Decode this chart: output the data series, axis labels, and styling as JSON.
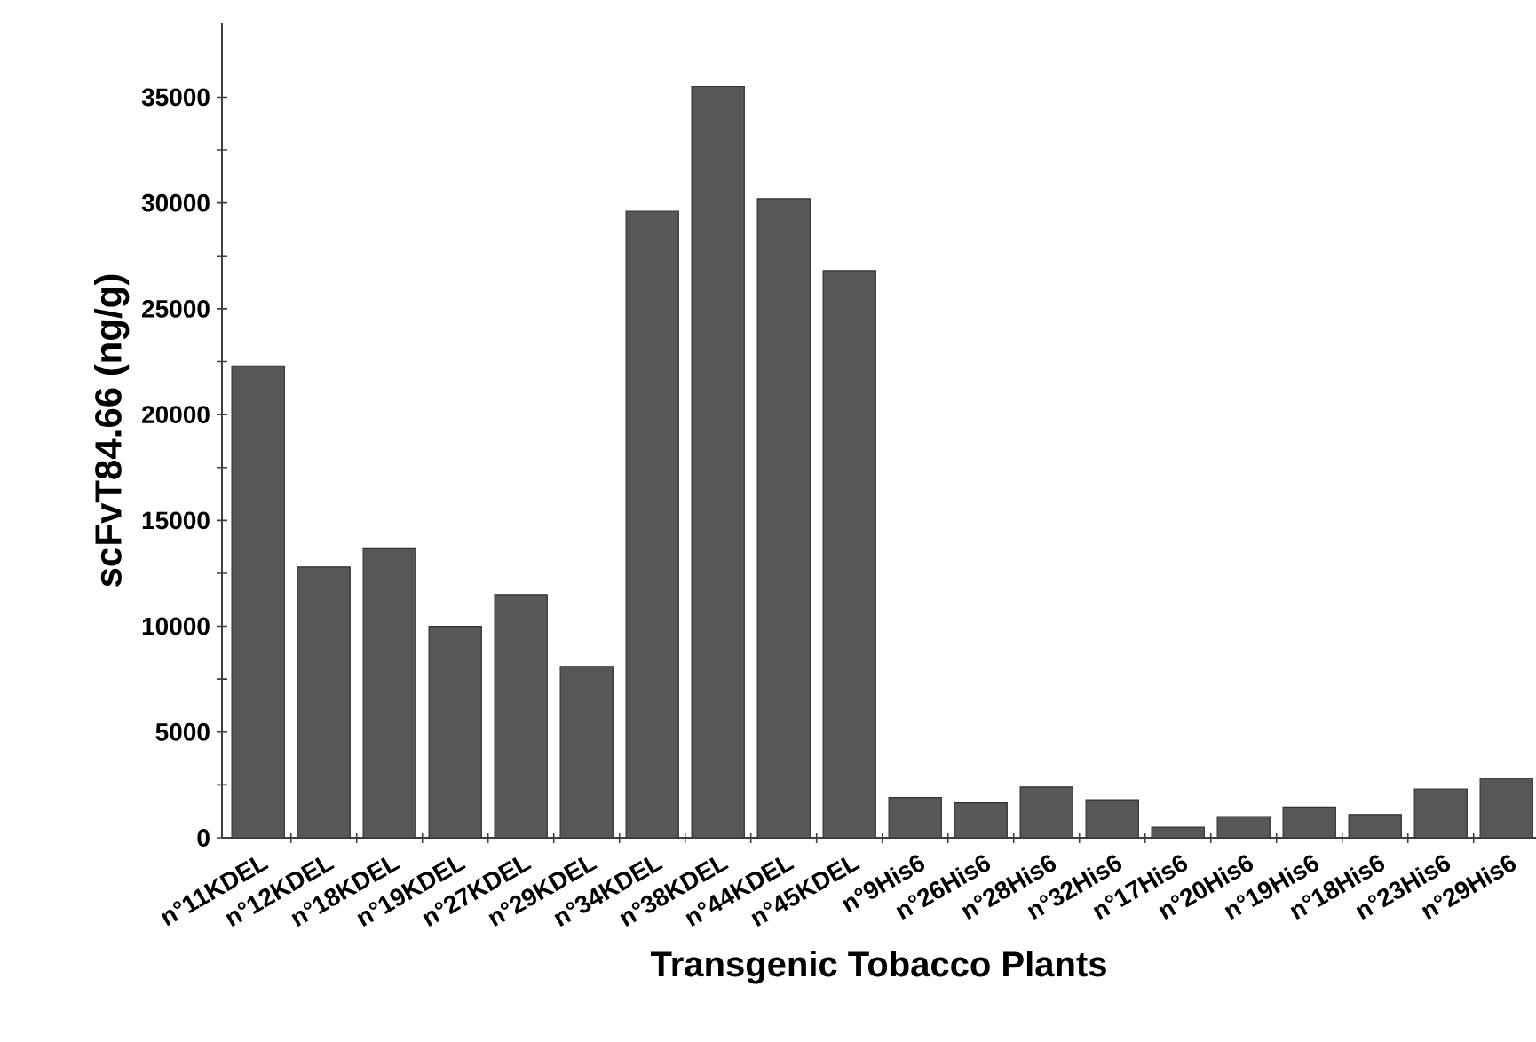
{
  "chart_data": {
    "type": "bar",
    "xlabel": "Transgenic Tobacco Plants",
    "ylabel": "scFvT84.66 (ng/g)",
    "categories": [
      "n°11KDEL",
      "n°12KDEL",
      "n°18KDEL",
      "n°19KDEL",
      "n°27KDEL",
      "n°29KDEL",
      "n°34KDEL",
      "n°38KDEL",
      "n°44KDEL",
      "n°45KDEL",
      "n°9His6",
      "n°26His6",
      "n°28His6",
      "n°32His6",
      "n°17His6",
      "n°20His6",
      "n°19His6",
      "n°18His6",
      "n°23His6",
      "n°29His6"
    ],
    "values": [
      22300,
      12800,
      13700,
      10000,
      11500,
      8100,
      29600,
      35500,
      30200,
      26800,
      1900,
      1650,
      2400,
      1800,
      500,
      1000,
      1450,
      1100,
      2300,
      2800
    ],
    "color": "#575757",
    "ylim": [
      0,
      38500
    ],
    "yticks": [
      0,
      5000,
      10000,
      15000,
      20000,
      25000,
      30000,
      35000
    ]
  }
}
